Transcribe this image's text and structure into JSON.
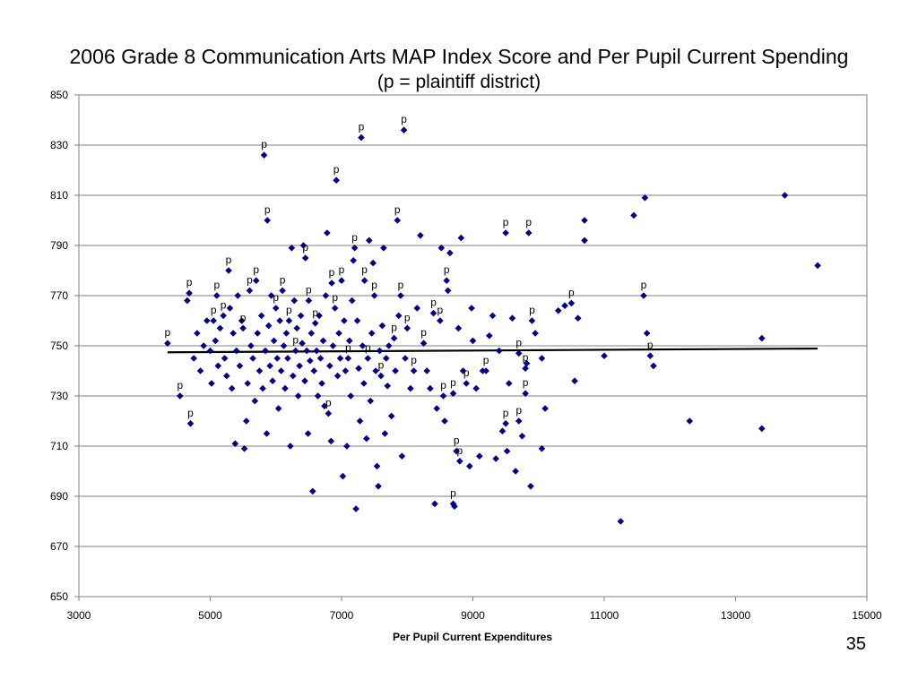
{
  "slide": {
    "number": "35"
  },
  "chart_data": {
    "type": "scatter",
    "title": "2006 Grade 8 Communication Arts MAP Index Score and Per Pupil Current Spending",
    "subtitle": "(p = plaintiff district)",
    "xlabel": "Per Pupil Current Expenditures",
    "ylabel": "",
    "xlim": [
      3000,
      15000
    ],
    "ylim": [
      650,
      850
    ],
    "x_ticks": [
      "3000",
      "5000",
      "7000",
      "9000",
      "11000",
      "13000",
      "15000"
    ],
    "y_ticks": [
      "850",
      "830",
      "810",
      "790",
      "770",
      "750",
      "730",
      "710",
      "690",
      "670",
      "650"
    ],
    "grid": "horizontal",
    "marker_color": "#00008B",
    "trendline": {
      "x": [
        4350,
        14250
      ],
      "y": [
        747.4,
        748.9
      ],
      "color": "#000000"
    },
    "plaintiff_marker": "p",
    "plaintiff_points": [
      [
        4350,
        751
      ],
      [
        4540,
        730
      ],
      [
        4680,
        771
      ],
      [
        4700,
        719
      ],
      [
        5050,
        760
      ],
      [
        5100,
        770
      ],
      [
        5200,
        762
      ],
      [
        5280,
        780
      ],
      [
        5500,
        757
      ],
      [
        5600,
        772
      ],
      [
        5700,
        776
      ],
      [
        5820,
        826
      ],
      [
        5870,
        800
      ],
      [
        6000,
        765
      ],
      [
        6100,
        772
      ],
      [
        6200,
        760
      ],
      [
        6300,
        748
      ],
      [
        6450,
        785
      ],
      [
        6500,
        768
      ],
      [
        6600,
        759
      ],
      [
        6800,
        723
      ],
      [
        6850,
        775
      ],
      [
        6900,
        765
      ],
      [
        6920,
        816
      ],
      [
        7000,
        776
      ],
      [
        7100,
        745
      ],
      [
        7200,
        789
      ],
      [
        7300,
        833
      ],
      [
        7350,
        776
      ],
      [
        7400,
        745
      ],
      [
        7500,
        770
      ],
      [
        7600,
        738
      ],
      [
        7800,
        753
      ],
      [
        7850,
        800
      ],
      [
        7900,
        770
      ],
      [
        7950,
        836
      ],
      [
        8000,
        757
      ],
      [
        8100,
        740
      ],
      [
        8250,
        751
      ],
      [
        8400,
        763
      ],
      [
        8500,
        760
      ],
      [
        8550,
        730
      ],
      [
        8600,
        776
      ],
      [
        8700,
        731
      ],
      [
        8750,
        708
      ],
      [
        8800,
        704
      ],
      [
        8900,
        735
      ],
      [
        9200,
        740
      ],
      [
        9500,
        719
      ],
      [
        9700,
        747
      ],
      [
        9700,
        720
      ],
      [
        9800,
        741
      ],
      [
        9800,
        731
      ],
      [
        9850,
        795
      ],
      [
        9900,
        760
      ],
      [
        10500,
        767
      ],
      [
        11600,
        770
      ],
      [
        11700,
        746
      ],
      [
        9500,
        795
      ],
      [
        8700,
        687
      ]
    ],
    "points": [
      [
        4350,
        751
      ],
      [
        4540,
        730
      ],
      [
        4650,
        768
      ],
      [
        4680,
        771
      ],
      [
        4700,
        719
      ],
      [
        4750,
        745
      ],
      [
        4800,
        755
      ],
      [
        4850,
        740
      ],
      [
        4900,
        750
      ],
      [
        4950,
        760
      ],
      [
        5000,
        748
      ],
      [
        5020,
        735
      ],
      [
        5050,
        760
      ],
      [
        5080,
        752
      ],
      [
        5100,
        770
      ],
      [
        5120,
        742
      ],
      [
        5150,
        757
      ],
      [
        5200,
        762
      ],
      [
        5220,
        745
      ],
      [
        5250,
        738
      ],
      [
        5280,
        780
      ],
      [
        5300,
        765
      ],
      [
        5330,
        733
      ],
      [
        5350,
        755
      ],
      [
        5380,
        711
      ],
      [
        5400,
        748
      ],
      [
        5420,
        770
      ],
      [
        5450,
        742
      ],
      [
        5480,
        760
      ],
      [
        5500,
        757
      ],
      [
        5520,
        709
      ],
      [
        5550,
        720
      ],
      [
        5570,
        735
      ],
      [
        5600,
        772
      ],
      [
        5620,
        750
      ],
      [
        5650,
        745
      ],
      [
        5680,
        728
      ],
      [
        5700,
        776
      ],
      [
        5720,
        755
      ],
      [
        5750,
        740
      ],
      [
        5780,
        762
      ],
      [
        5800,
        733
      ],
      [
        5820,
        826
      ],
      [
        5840,
        748
      ],
      [
        5860,
        715
      ],
      [
        5870,
        800
      ],
      [
        5890,
        758
      ],
      [
        5910,
        742
      ],
      [
        5930,
        770
      ],
      [
        5950,
        736
      ],
      [
        5970,
        752
      ],
      [
        6000,
        765
      ],
      [
        6020,
        745
      ],
      [
        6040,
        725
      ],
      [
        6060,
        760
      ],
      [
        6080,
        740
      ],
      [
        6100,
        772
      ],
      [
        6120,
        750
      ],
      [
        6140,
        733
      ],
      [
        6160,
        755
      ],
      [
        6180,
        745
      ],
      [
        6200,
        760
      ],
      [
        6220,
        710
      ],
      [
        6240,
        789
      ],
      [
        6260,
        738
      ],
      [
        6280,
        768
      ],
      [
        6300,
        748
      ],
      [
        6320,
        757
      ],
      [
        6340,
        730
      ],
      [
        6360,
        742
      ],
      [
        6380,
        762
      ],
      [
        6400,
        751
      ],
      [
        6420,
        790
      ],
      [
        6440,
        736
      ],
      [
        6450,
        785
      ],
      [
        6470,
        748
      ],
      [
        6490,
        715
      ],
      [
        6500,
        768
      ],
      [
        6520,
        744
      ],
      [
        6540,
        755
      ],
      [
        6560,
        692
      ],
      [
        6580,
        740
      ],
      [
        6600,
        759
      ],
      [
        6620,
        748
      ],
      [
        6640,
        730
      ],
      [
        6660,
        762
      ],
      [
        6680,
        745
      ],
      [
        6700,
        735
      ],
      [
        6720,
        752
      ],
      [
        6740,
        726
      ],
      [
        6760,
        770
      ],
      [
        6780,
        795
      ],
      [
        6800,
        723
      ],
      [
        6820,
        742
      ],
      [
        6840,
        712
      ],
      [
        6850,
        775
      ],
      [
        6870,
        750
      ],
      [
        6900,
        765
      ],
      [
        6920,
        816
      ],
      [
        6940,
        738
      ],
      [
        6960,
        755
      ],
      [
        6980,
        745
      ],
      [
        7000,
        776
      ],
      [
        7020,
        698
      ],
      [
        7040,
        760
      ],
      [
        7060,
        740
      ],
      [
        7080,
        710
      ],
      [
        7100,
        745
      ],
      [
        7120,
        752
      ],
      [
        7140,
        730
      ],
      [
        7160,
        768
      ],
      [
        7180,
        784
      ],
      [
        7200,
        789
      ],
      [
        7220,
        685
      ],
      [
        7240,
        760
      ],
      [
        7260,
        741
      ],
      [
        7280,
        720
      ],
      [
        7300,
        833
      ],
      [
        7320,
        750
      ],
      [
        7340,
        735
      ],
      [
        7350,
        776
      ],
      [
        7380,
        713
      ],
      [
        7400,
        745
      ],
      [
        7420,
        792
      ],
      [
        7440,
        728
      ],
      [
        7460,
        755
      ],
      [
        7480,
        783
      ],
      [
        7500,
        770
      ],
      [
        7520,
        740
      ],
      [
        7540,
        702
      ],
      [
        7560,
        694
      ],
      [
        7580,
        748
      ],
      [
        7600,
        738
      ],
      [
        7620,
        758
      ],
      [
        7640,
        789
      ],
      [
        7660,
        715
      ],
      [
        7680,
        745
      ],
      [
        7700,
        734
      ],
      [
        7720,
        750
      ],
      [
        7760,
        722
      ],
      [
        7800,
        753
      ],
      [
        7820,
        740
      ],
      [
        7850,
        800
      ],
      [
        7870,
        762
      ],
      [
        7900,
        770
      ],
      [
        7920,
        706
      ],
      [
        7950,
        836
      ],
      [
        7970,
        745
      ],
      [
        8000,
        757
      ],
      [
        8050,
        733
      ],
      [
        8100,
        740
      ],
      [
        8150,
        765
      ],
      [
        8200,
        794
      ],
      [
        8250,
        751
      ],
      [
        8300,
        740
      ],
      [
        8350,
        733
      ],
      [
        8400,
        763
      ],
      [
        8420,
        687
      ],
      [
        8450,
        725
      ],
      [
        8500,
        760
      ],
      [
        8520,
        789
      ],
      [
        8550,
        730
      ],
      [
        8570,
        720
      ],
      [
        8600,
        776
      ],
      [
        8620,
        772
      ],
      [
        8650,
        787
      ],
      [
        8700,
        731
      ],
      [
        8720,
        686
      ],
      [
        8750,
        708
      ],
      [
        8780,
        757
      ],
      [
        8800,
        704
      ],
      [
        8820,
        793
      ],
      [
        8850,
        740
      ],
      [
        8900,
        735
      ],
      [
        8950,
        702
      ],
      [
        8980,
        765
      ],
      [
        9000,
        752
      ],
      [
        9050,
        733
      ],
      [
        9100,
        706
      ],
      [
        9150,
        740
      ],
      [
        9200,
        740
      ],
      [
        9250,
        754
      ],
      [
        9300,
        762
      ],
      [
        9350,
        705
      ],
      [
        9400,
        748
      ],
      [
        9450,
        716
      ],
      [
        9500,
        719
      ],
      [
        9520,
        708
      ],
      [
        9550,
        735
      ],
      [
        9600,
        761
      ],
      [
        9650,
        700
      ],
      [
        9700,
        747
      ],
      [
        9700,
        720
      ],
      [
        9750,
        714
      ],
      [
        9800,
        741
      ],
      [
        9800,
        731
      ],
      [
        9820,
        743
      ],
      [
        9850,
        795
      ],
      [
        9880,
        694
      ],
      [
        9900,
        760
      ],
      [
        9950,
        755
      ],
      [
        10050,
        745
      ],
      [
        10050,
        709
      ],
      [
        10100,
        725
      ],
      [
        10300,
        764
      ],
      [
        10400,
        766
      ],
      [
        10500,
        767
      ],
      [
        10550,
        736
      ],
      [
        10600,
        761
      ],
      [
        10700,
        800
      ],
      [
        10700,
        792
      ],
      [
        11000,
        746
      ],
      [
        11250,
        680
      ],
      [
        11450,
        802
      ],
      [
        11600,
        770
      ],
      [
        11620,
        809
      ],
      [
        11650,
        755
      ],
      [
        11700,
        746
      ],
      [
        11750,
        742
      ],
      [
        12300,
        720
      ],
      [
        13400,
        753
      ],
      [
        13400,
        717
      ],
      [
        13750,
        810
      ],
      [
        14250,
        782
      ],
      [
        9500,
        795
      ],
      [
        8700,
        687
      ]
    ]
  }
}
